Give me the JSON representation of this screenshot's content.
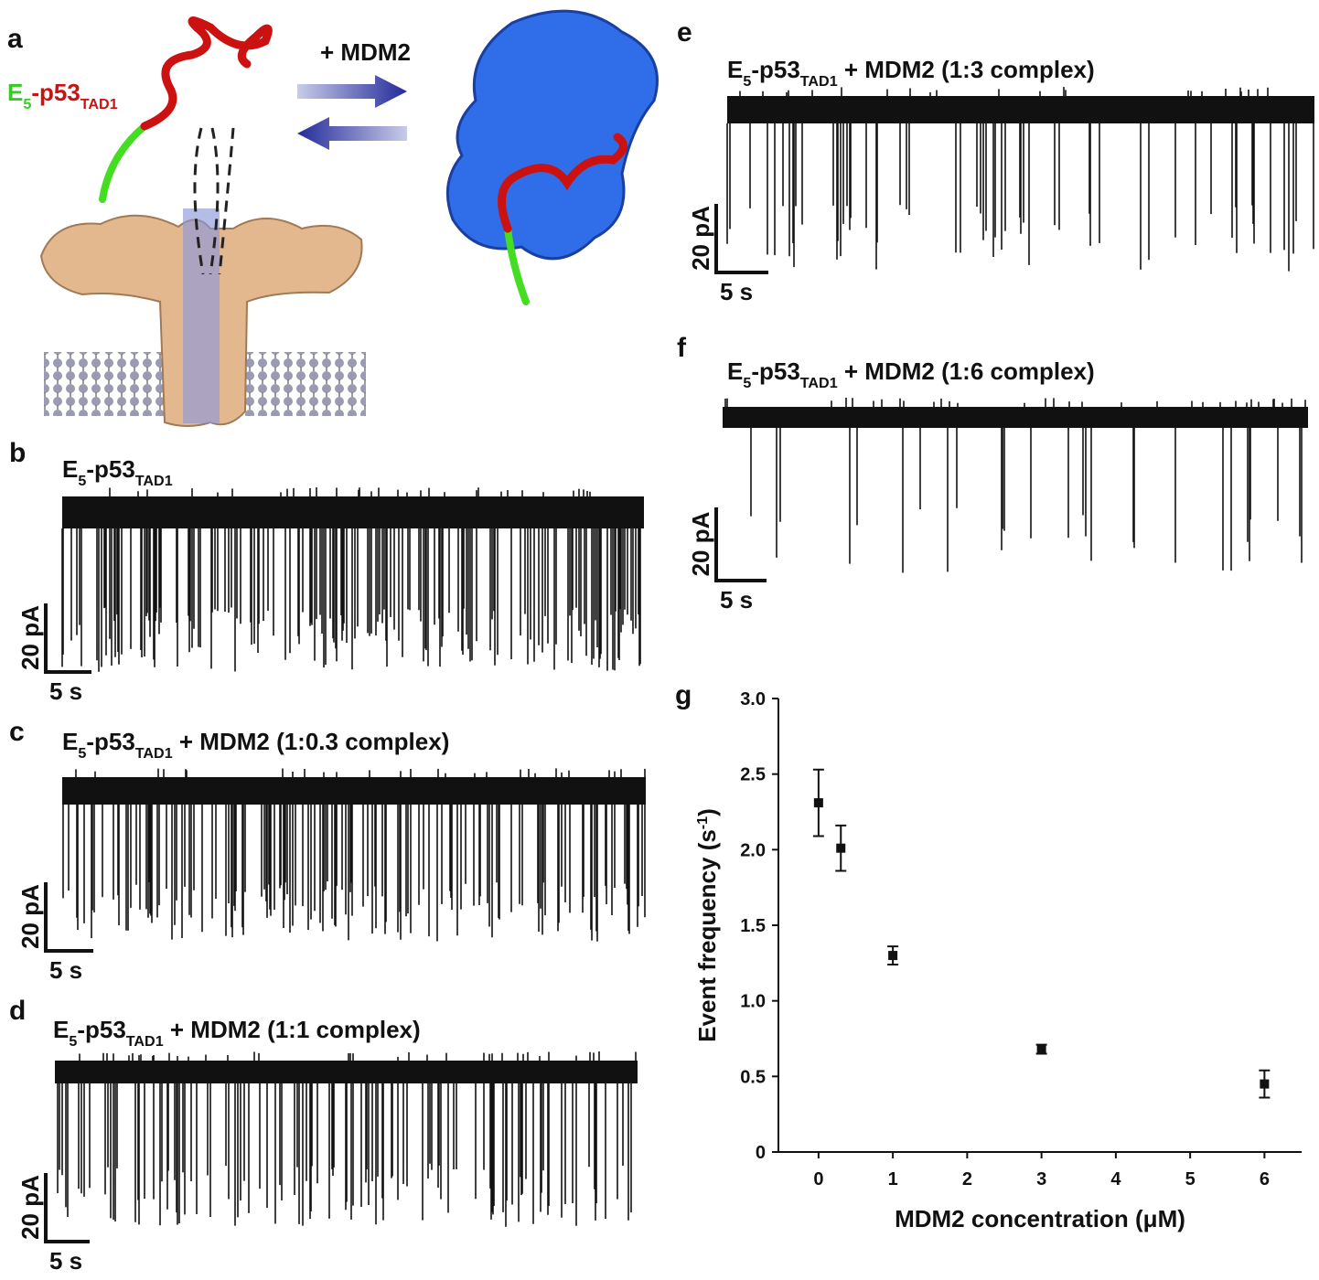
{
  "panels": {
    "a": {
      "letter": "a",
      "label": [
        "E",
        "5",
        "-p53",
        "TAD1"
      ],
      "arrow_label": "+ MDM2"
    },
    "b": {
      "letter": "b",
      "title": [
        "E",
        "5",
        "-p53",
        "TAD1"
      ],
      "scale_y": "20 pA",
      "scale_x": "5 s"
    },
    "c": {
      "letter": "c",
      "title": [
        "E",
        "5",
        "-p53",
        "TAD1",
        " + MDM2 (1:0.3 complex)"
      ],
      "scale_y": "20 pA",
      "scale_x": "5 s"
    },
    "d": {
      "letter": "d",
      "title": [
        "E",
        "5",
        "-p53",
        "TAD1",
        " + MDM2 (1:1 complex)"
      ],
      "scale_y": "20 pA",
      "scale_x": "5 s"
    },
    "e": {
      "letter": "e",
      "title": [
        "E",
        "5",
        "-p53",
        "TAD1",
        " + MDM2 (1:3 complex)"
      ],
      "scale_y": "20 pA",
      "scale_x": "5 s"
    },
    "f": {
      "letter": "f",
      "title": [
        "E",
        "5",
        "-p53",
        "TAD1",
        " + MDM2 (1:6 complex)"
      ],
      "scale_y": "20 pA",
      "scale_x": "5 s"
    },
    "g": {
      "letter": "g"
    }
  },
  "chart_data": {
    "type": "scatter",
    "xlabel": "MDM2 concentration (μM)",
    "ylabel": [
      "Event frequency (s",
      "-1",
      ")"
    ],
    "x": [
      0,
      0.3,
      1,
      3,
      6
    ],
    "values": [
      2.31,
      2.01,
      1.3,
      0.68,
      0.45
    ],
    "errors": [
      0.22,
      0.15,
      0.06,
      0.03,
      0.09
    ],
    "color": "#111111",
    "xlim": [
      -0.54,
      6.5
    ],
    "xticks": [
      0,
      1,
      2,
      3,
      4,
      5,
      6
    ],
    "ylim": [
      0,
      3
    ],
    "yticks": [
      0,
      0.5,
      {
        "value": 1,
        "label": "1.0"
      },
      1.5,
      {
        "value": 2,
        "label": "2.0"
      },
      2.5,
      {
        "value": 3,
        "label": "3.0"
      }
    ]
  }
}
